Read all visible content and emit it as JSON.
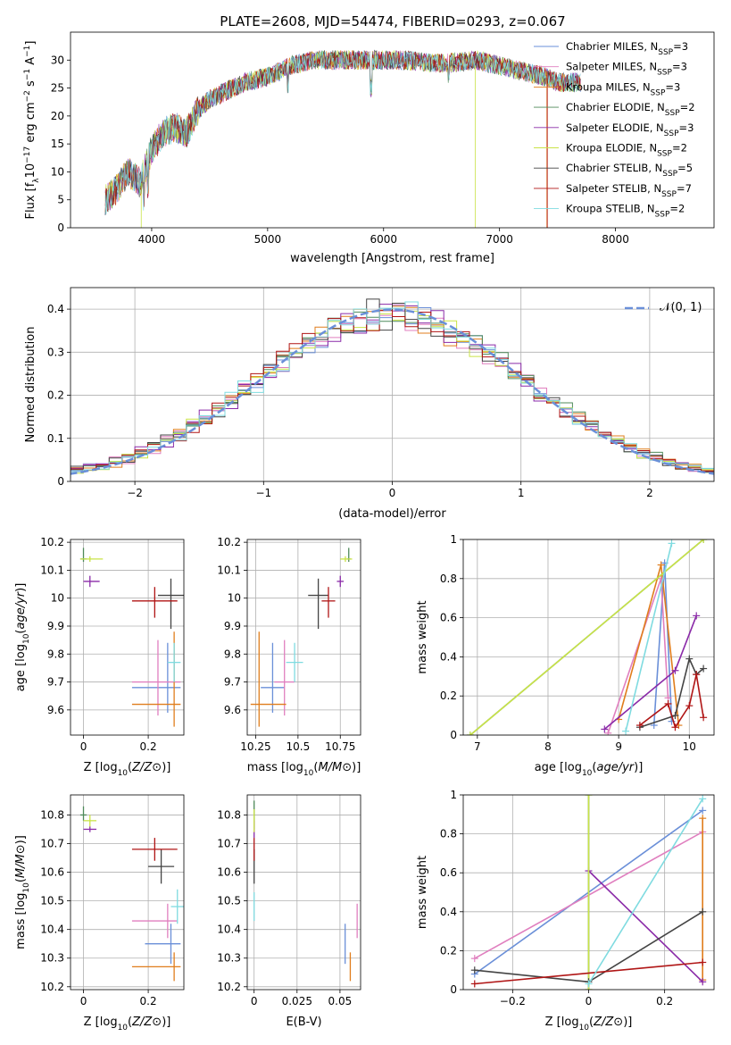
{
  "figure_title": "PLATE=2608, MJD=54474, FIBERID=0293, z=0.067",
  "models": [
    {
      "name": "Chabrier MILES",
      "nssp": "3",
      "color": "#6a8fd8"
    },
    {
      "name": "Salpeter MILES",
      "nssp": "3",
      "color": "#e07fbf"
    },
    {
      "name": "Kroupa MILES",
      "nssp": "3",
      "color": "#e07d1c"
    },
    {
      "name": "Chabrier ELODIE",
      "nssp": "2",
      "color": "#4f8a5a"
    },
    {
      "name": "Salpeter ELODIE",
      "nssp": "3",
      "color": "#8a2aa8"
    },
    {
      "name": "Kroupa ELODIE",
      "nssp": "2",
      "color": "#c9e347"
    },
    {
      "name": "Chabrier STELIB",
      "nssp": "5",
      "color": "#444444"
    },
    {
      "name": "Salpeter STELIB",
      "nssp": "7",
      "color": "#b01515"
    },
    {
      "name": "Kroupa STELIB",
      "nssp": "2",
      "color": "#7fdbe0"
    }
  ],
  "chart_data": [
    {
      "id": "spectrum",
      "type": "line",
      "xlabel": "wavelength [Angstrom, rest frame]",
      "ylabel": "Flux [f_λ10^-17 erg cm^-2 s^-1 A^-1]",
      "xlim": [
        3300,
        8850
      ],
      "ylim": [
        0,
        35
      ],
      "xticks": [
        4000,
        5000,
        6000,
        7000,
        8000
      ],
      "yticks": [
        0,
        5,
        10,
        15,
        20,
        25,
        30
      ],
      "continuum": {
        "x": [
          3600,
          3700,
          3800,
          3900,
          4000,
          4100,
          4200,
          4300,
          4400,
          4500,
          4600,
          4800,
          5000,
          5200,
          5400,
          5600,
          5800,
          6000,
          6200,
          6400,
          6600,
          6800,
          7000,
          7200,
          7400,
          7500
        ],
        "y": [
          5,
          7,
          10,
          8,
          14,
          17,
          18,
          17,
          21,
          23,
          24,
          26,
          27,
          29,
          30,
          30,
          30,
          30,
          30,
          29.5,
          29.5,
          30,
          29,
          28,
          27,
          26
        ]
      },
      "legend_loc": "upper right"
    },
    {
      "id": "residuals",
      "type": "step",
      "xlabel": "(data-model)/error",
      "ylabel": "Normed distribution",
      "xlim": [
        -2.5,
        2.5
      ],
      "ylim": [
        0,
        0.45
      ],
      "xticks": [
        -2,
        -1,
        0,
        1,
        2
      ],
      "yticks": [
        0.0,
        0.1,
        0.2,
        0.3,
        0.4
      ],
      "reference_label": "𝒩(0, 1)",
      "reference_color": "#6a8fd8",
      "legend_loc": "upper right",
      "grid": true
    },
    {
      "id": "age_vs_Z",
      "type": "errorbar",
      "xlabel": "Z [log10(Z/Z⊙)]",
      "ylabel": "age [log10(age/yr)]",
      "xlim": [
        -0.04,
        0.31
      ],
      "ylim": [
        9.51,
        10.21
      ],
      "xticks": [
        0.0,
        0.2
      ],
      "yticks": [
        9.6,
        9.7,
        9.8,
        9.9,
        10.0,
        10.1,
        10.2
      ],
      "points": [
        {
          "x": 0.26,
          "y": 9.68,
          "xerr": [
            0.11,
            0.04
          ],
          "yerr": [
            0.09,
            0.16
          ],
          "model": 0
        },
        {
          "x": 0.23,
          "y": 9.7,
          "xerr": [
            0.08,
            0.07
          ],
          "yerr": [
            0.12,
            0.15
          ],
          "model": 1
        },
        {
          "x": 0.28,
          "y": 9.62,
          "xerr": [
            0.13,
            0.02
          ],
          "yerr": [
            0.08,
            0.26
          ],
          "model": 2
        },
        {
          "x": 0.0,
          "y": 10.14,
          "xerr": [
            0.01,
            0.01
          ],
          "yerr": [
            0.01,
            0.04
          ],
          "model": 3
        },
        {
          "x": 0.02,
          "y": 10.06,
          "xerr": [
            0.02,
            0.03
          ],
          "yerr": [
            0.02,
            0.02
          ],
          "model": 4
        },
        {
          "x": 0.02,
          "y": 10.14,
          "xerr": [
            0.03,
            0.04
          ],
          "yerr": [
            0.01,
            0.01
          ],
          "model": 5
        },
        {
          "x": 0.27,
          "y": 10.01,
          "xerr": [
            0.04,
            0.04
          ],
          "yerr": [
            0.12,
            0.06
          ],
          "model": 6
        },
        {
          "x": 0.22,
          "y": 9.99,
          "xerr": [
            0.07,
            0.07
          ],
          "yerr": [
            0.06,
            0.05
          ],
          "model": 7
        },
        {
          "x": 0.28,
          "y": 9.77,
          "xerr": [
            0.02,
            0.02
          ],
          "yerr": [
            0.07,
            0.07
          ],
          "model": 8
        }
      ]
    },
    {
      "id": "age_vs_mass",
      "type": "errorbar",
      "xlabel": "mass [log10(M/M⊙)]",
      "ylabel": "",
      "xlim": [
        10.2,
        10.87
      ],
      "ylim": [
        9.51,
        10.21
      ],
      "xticks": [
        10.25,
        10.5,
        10.75
      ],
      "yticks": [
        9.6,
        9.7,
        9.8,
        9.9,
        10.0,
        10.1,
        10.2
      ],
      "points": [
        {
          "x": 10.35,
          "y": 9.68,
          "xerr": [
            0.07,
            0.07
          ],
          "yerr": [
            0.09,
            0.16
          ],
          "model": 0
        },
        {
          "x": 10.42,
          "y": 9.7,
          "xerr": [
            0.06,
            0.06
          ],
          "yerr": [
            0.12,
            0.15
          ],
          "model": 1
        },
        {
          "x": 10.27,
          "y": 9.62,
          "xerr": [
            0.05,
            0.16
          ],
          "yerr": [
            0.08,
            0.26
          ],
          "model": 2
        },
        {
          "x": 10.8,
          "y": 10.14,
          "xerr": [
            0.01,
            0.01
          ],
          "yerr": [
            0.01,
            0.04
          ],
          "model": 3
        },
        {
          "x": 10.75,
          "y": 10.06,
          "xerr": [
            0.02,
            0.02
          ],
          "yerr": [
            0.02,
            0.02
          ],
          "model": 4
        },
        {
          "x": 10.78,
          "y": 10.14,
          "xerr": [
            0.03,
            0.04
          ],
          "yerr": [
            0.01,
            0.01
          ],
          "model": 5
        },
        {
          "x": 10.62,
          "y": 10.01,
          "xerr": [
            0.06,
            0.06
          ],
          "yerr": [
            0.12,
            0.06
          ],
          "model": 6
        },
        {
          "x": 10.68,
          "y": 9.99,
          "xerr": [
            0.04,
            0.04
          ],
          "yerr": [
            0.06,
            0.05
          ],
          "model": 7
        },
        {
          "x": 10.48,
          "y": 9.77,
          "xerr": [
            0.05,
            0.05
          ],
          "yerr": [
            0.07,
            0.07
          ],
          "model": 8
        }
      ]
    },
    {
      "id": "weight_vs_age",
      "type": "line",
      "xlabel": "age [log10(age/yr)]",
      "ylabel": "mass weight",
      "xlim": [
        6.8,
        10.35
      ],
      "ylim": [
        0,
        1.0
      ],
      "xticks": [
        7,
        8,
        9,
        10
      ],
      "yticks": [
        0.0,
        0.2,
        0.4,
        0.6,
        0.8,
        1.0
      ],
      "series": [
        {
          "model": 0,
          "x": [
            9.5,
            9.65,
            9.75
          ],
          "y": [
            0.05,
            0.88,
            0.07
          ]
        },
        {
          "model": 1,
          "x": [
            8.85,
            9.6,
            9.7
          ],
          "y": [
            0.01,
            0.8,
            0.19
          ]
        },
        {
          "model": 2,
          "x": [
            9.0,
            9.6,
            9.85
          ],
          "y": [
            0.08,
            0.87,
            0.05
          ]
        },
        {
          "model": 3,
          "x": [
            6.9,
            10.2
          ],
          "y": [
            0.0,
            1.0
          ]
        },
        {
          "model": 4,
          "x": [
            8.8,
            9.8,
            10.1
          ],
          "y": [
            0.03,
            0.33,
            0.61
          ]
        },
        {
          "model": 5,
          "x": [
            6.9,
            10.2
          ],
          "y": [
            0.0,
            1.0
          ]
        },
        {
          "model": 6,
          "x": [
            9.3,
            9.8,
            10.0,
            10.1,
            10.2
          ],
          "y": [
            0.04,
            0.1,
            0.39,
            0.31,
            0.34
          ]
        },
        {
          "model": 7,
          "x": [
            9.3,
            9.7,
            9.8,
            10.0,
            10.1,
            10.2
          ],
          "y": [
            0.05,
            0.16,
            0.04,
            0.15,
            0.31,
            0.09
          ]
        },
        {
          "model": 8,
          "x": [
            9.1,
            9.75
          ],
          "y": [
            0.02,
            0.98
          ]
        }
      ]
    },
    {
      "id": "mass_vs_Z",
      "type": "errorbar",
      "xlabel": "Z [log10(Z/Z⊙)]",
      "ylabel": "mass [log10(M/M⊙)]",
      "xlim": [
        -0.04,
        0.31
      ],
      "ylim": [
        10.19,
        10.87
      ],
      "xticks": [
        0.0,
        0.2
      ],
      "yticks": [
        10.2,
        10.3,
        10.4,
        10.5,
        10.6,
        10.7,
        10.8
      ],
      "points": [
        {
          "x": 0.27,
          "y": 10.35,
          "xerr": [
            0.08,
            0.03
          ],
          "yerr": [
            0.07,
            0.07
          ],
          "model": 0
        },
        {
          "x": 0.26,
          "y": 10.43,
          "xerr": [
            0.11,
            0.03
          ],
          "yerr": [
            0.06,
            0.06
          ],
          "model": 1
        },
        {
          "x": 0.28,
          "y": 10.27,
          "xerr": [
            0.13,
            0.02
          ],
          "yerr": [
            0.05,
            0.05
          ],
          "model": 2
        },
        {
          "x": 0.0,
          "y": 10.8,
          "xerr": [
            0.01,
            0.01
          ],
          "yerr": [
            0.02,
            0.03
          ],
          "model": 3
        },
        {
          "x": 0.02,
          "y": 10.75,
          "xerr": [
            0.02,
            0.02
          ],
          "yerr": [
            0.01,
            0.01
          ],
          "model": 4
        },
        {
          "x": 0.02,
          "y": 10.78,
          "xerr": [
            0.02,
            0.02
          ],
          "yerr": [
            0.02,
            0.02
          ],
          "model": 5
        },
        {
          "x": 0.24,
          "y": 10.62,
          "xerr": [
            0.04,
            0.04
          ],
          "yerr": [
            0.06,
            0.06
          ],
          "model": 6
        },
        {
          "x": 0.22,
          "y": 10.68,
          "xerr": [
            0.07,
            0.07
          ],
          "yerr": [
            0.04,
            0.04
          ],
          "model": 7
        },
        {
          "x": 0.29,
          "y": 10.48,
          "xerr": [
            0.02,
            0.02
          ],
          "yerr": [
            0.06,
            0.06
          ],
          "model": 8
        }
      ]
    },
    {
      "id": "mass_vs_EBV",
      "type": "errorbar",
      "xlabel": "E(B-V)",
      "ylabel": "",
      "xlim": [
        -0.004,
        0.062
      ],
      "ylim": [
        10.19,
        10.87
      ],
      "xticks": [
        0.0,
        0.025,
        0.05
      ],
      "yticks": [
        10.2,
        10.3,
        10.4,
        10.5,
        10.6,
        10.7,
        10.8
      ],
      "points": [
        {
          "x": 0.053,
          "y": 10.35,
          "xerr": [
            0,
            0
          ],
          "yerr": [
            0.07,
            0.07
          ],
          "model": 0
        },
        {
          "x": 0.06,
          "y": 10.43,
          "xerr": [
            0,
            0
          ],
          "yerr": [
            0.06,
            0.06
          ],
          "model": 1
        },
        {
          "x": 0.056,
          "y": 10.27,
          "xerr": [
            0,
            0
          ],
          "yerr": [
            0.05,
            0.05
          ],
          "model": 2
        },
        {
          "x": 0.0,
          "y": 10.8,
          "xerr": [
            0,
            0
          ],
          "yerr": [
            0.05,
            0.05
          ],
          "model": 3
        },
        {
          "x": 0.0,
          "y": 10.75,
          "xerr": [
            0,
            0
          ],
          "yerr": [
            0.03,
            0.03
          ],
          "model": 4
        },
        {
          "x": 0.0,
          "y": 10.78,
          "xerr": [
            0,
            0
          ],
          "yerr": [
            0.04,
            0.04
          ],
          "model": 5
        },
        {
          "x": 0.0,
          "y": 10.62,
          "xerr": [
            0,
            0
          ],
          "yerr": [
            0.06,
            0.06
          ],
          "model": 6
        },
        {
          "x": 0.0,
          "y": 10.68,
          "xerr": [
            0,
            0
          ],
          "yerr": [
            0.04,
            0.04
          ],
          "model": 7
        },
        {
          "x": 0.0,
          "y": 10.48,
          "xerr": [
            0,
            0
          ],
          "yerr": [
            0.05,
            0.05
          ],
          "model": 8
        }
      ]
    },
    {
      "id": "weight_vs_Z",
      "type": "line",
      "xlabel": "Z [log10(Z/Z⊙)]",
      "ylabel": "mass weight",
      "xlim": [
        -0.33,
        0.33
      ],
      "ylim": [
        0,
        1.0
      ],
      "xticks": [
        -0.2,
        0.0,
        0.2
      ],
      "yticks": [
        0.0,
        0.2,
        0.4,
        0.6,
        0.8,
        1.0
      ],
      "series": [
        {
          "model": 0,
          "x": [
            -0.3,
            0.3
          ],
          "y": [
            0.08,
            0.92
          ]
        },
        {
          "model": 1,
          "x": [
            -0.3,
            0.3
          ],
          "y": [
            0.16,
            0.81
          ]
        },
        {
          "model": 2,
          "x": [
            0.3,
            0.3
          ],
          "y": [
            0.05,
            0.88
          ]
        },
        {
          "model": 3,
          "x": [
            0.0,
            0.0
          ],
          "y": [
            0.0,
            1.0
          ]
        },
        {
          "model": 4,
          "x": [
            0.0,
            0.3
          ],
          "y": [
            0.61,
            0.04
          ]
        },
        {
          "model": 5,
          "x": [
            0.0,
            0.0
          ],
          "y": [
            0.0,
            1.0
          ]
        },
        {
          "model": 6,
          "x": [
            -0.3,
            0.0,
            0.3
          ],
          "y": [
            0.1,
            0.04,
            0.4
          ]
        },
        {
          "model": 7,
          "x": [
            -0.3,
            0.3
          ],
          "y": [
            0.03,
            0.14
          ]
        },
        {
          "model": 8,
          "x": [
            0.0,
            0.3
          ],
          "y": [
            0.03,
            0.98
          ]
        }
      ]
    }
  ]
}
